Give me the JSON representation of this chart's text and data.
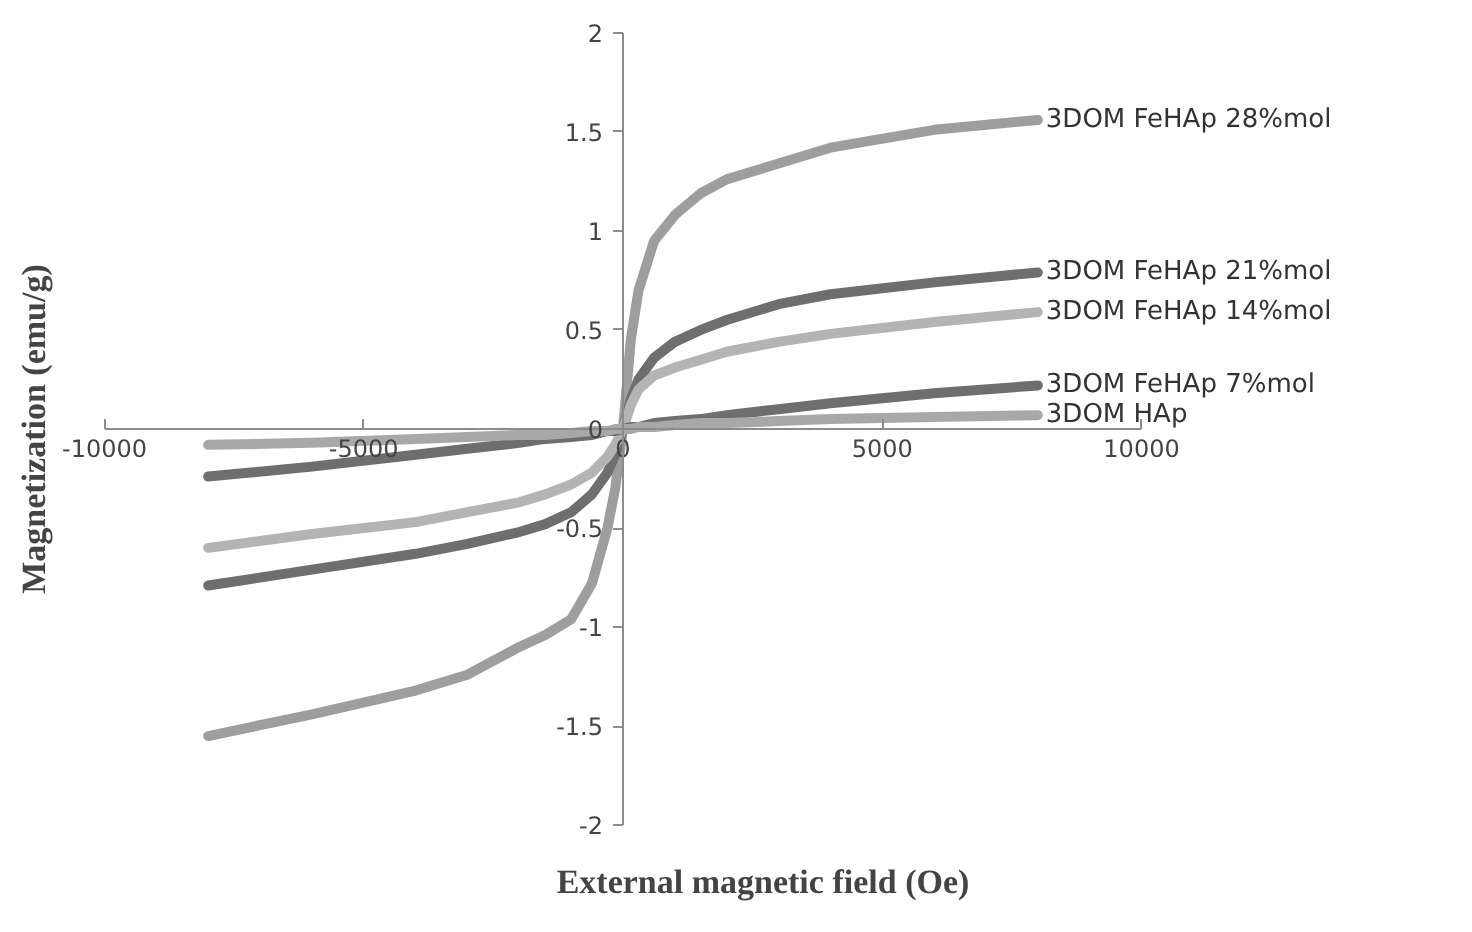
{
  "chart_data": {
    "type": "line",
    "xlabel": "External magnetic field (Oe)",
    "ylabel": "Magnetization (emu/g)",
    "x": [
      -8000,
      -6000,
      -4000,
      -3000,
      -2000,
      -1500,
      -1000,
      -600,
      -300,
      -150,
      0,
      150,
      300,
      600,
      1000,
      1500,
      2000,
      3000,
      4000,
      6000,
      8000
    ],
    "xlim": [
      -10000,
      10000
    ],
    "ylim": [
      -2,
      2
    ],
    "xticks": [
      -10000,
      -5000,
      0,
      5000,
      10000
    ],
    "yticks": [
      -2,
      -1.5,
      -1,
      -0.5,
      0,
      0.5,
      1,
      1.5,
      2
    ],
    "grid": false,
    "legend": false,
    "marker": "none",
    "line_style": "solid",
    "series": [
      {
        "name": "3DOM FeHAp 28%mol",
        "color": "#9e9e9e",
        "values": [
          -1.55,
          -1.44,
          -1.32,
          -1.24,
          -1.1,
          -1.04,
          -0.96,
          -0.78,
          -0.5,
          -0.3,
          0,
          0.45,
          0.7,
          0.95,
          1.08,
          1.19,
          1.26,
          1.34,
          1.42,
          1.51,
          1.56
        ]
      },
      {
        "name": "3DOM FeHAp 21%mol",
        "color": "#6e6e6e",
        "values": [
          -0.79,
          -0.71,
          -0.63,
          -0.58,
          -0.52,
          -0.48,
          -0.42,
          -0.33,
          -0.22,
          -0.13,
          0,
          0.15,
          0.25,
          0.36,
          0.44,
          0.5,
          0.55,
          0.63,
          0.68,
          0.74,
          0.79
        ]
      },
      {
        "name": "3DOM FeHAp 14%mol",
        "color": "#b4b4b4",
        "values": [
          -0.6,
          -0.53,
          -0.47,
          -0.42,
          -0.37,
          -0.33,
          -0.28,
          -0.22,
          -0.14,
          -0.08,
          0,
          0.12,
          0.2,
          0.27,
          0.31,
          0.35,
          0.39,
          0.44,
          0.48,
          0.54,
          0.59
        ]
      },
      {
        "name": "3DOM FeHAp 7%mol",
        "color": "#6e6e6e",
        "values": [
          -0.24,
          -0.19,
          -0.13,
          -0.1,
          -0.07,
          -0.05,
          -0.04,
          -0.03,
          -0.01,
          -0.01,
          0,
          0.01,
          0.01,
          0.03,
          0.04,
          0.05,
          0.07,
          0.1,
          0.13,
          0.18,
          0.22
        ]
      },
      {
        "name": "3DOM HAp",
        "color": "#a8a8a8",
        "values": [
          -0.08,
          -0.07,
          -0.05,
          -0.04,
          -0.03,
          -0.03,
          -0.02,
          -0.01,
          -0.01,
          0,
          0,
          0,
          0.01,
          0.01,
          0.02,
          0.03,
          0.03,
          0.04,
          0.05,
          0.06,
          0.07
        ]
      }
    ]
  }
}
